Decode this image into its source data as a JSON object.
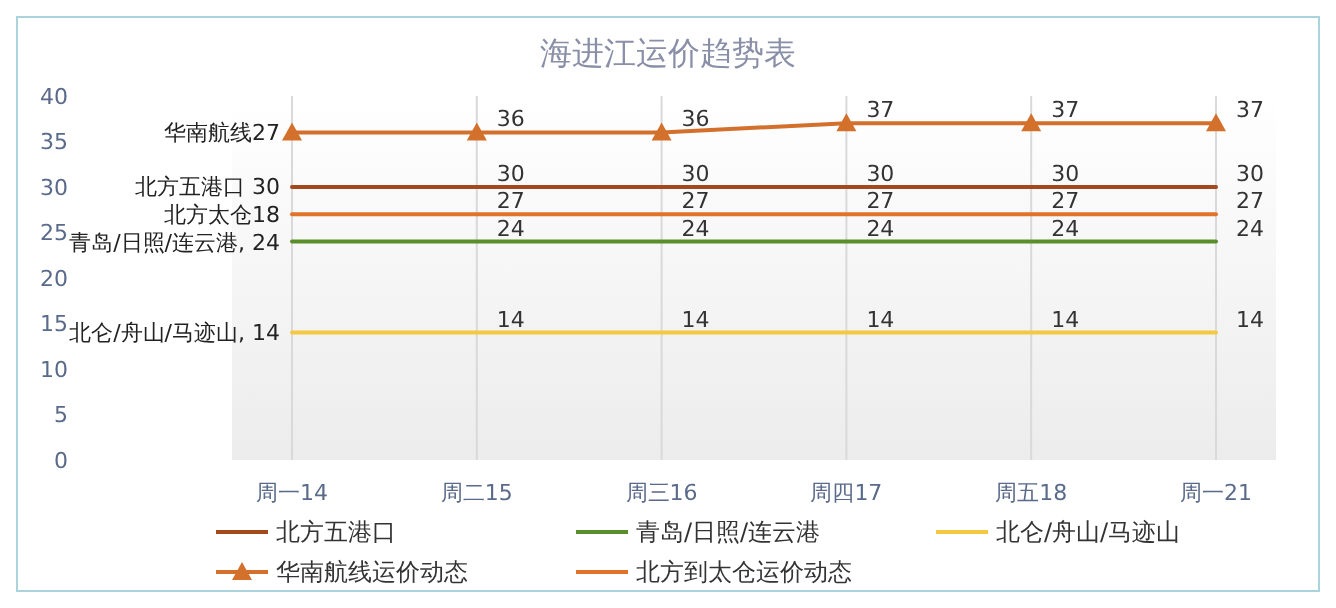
{
  "chart_data": {
    "type": "line",
    "title": "海进江运价趋势表",
    "categories": [
      "周一14",
      "周二15",
      "周三16",
      "周四17",
      "周五18",
      "周一21"
    ],
    "ylim": [
      0,
      40
    ],
    "yticks": [
      0,
      5,
      10,
      15,
      20,
      25,
      30,
      35,
      40
    ],
    "grid": "x",
    "legend": "bottom",
    "line_style": "solid",
    "series": [
      {
        "name": "北方五港口",
        "color": "#a24a1c",
        "marker": "none",
        "values": [
          30,
          30,
          30,
          30,
          30,
          30
        ],
        "value_labels": [
          null,
          "30",
          "30",
          "30",
          "30",
          "30"
        ]
      },
      {
        "name": "青岛/日照/连云港",
        "color": "#5a8e2a",
        "marker": "none",
        "values": [
          24,
          24,
          24,
          24,
          24,
          24
        ],
        "value_labels": [
          null,
          "24",
          "24",
          "24",
          "24",
          "24"
        ]
      },
      {
        "name": "北仑/舟山/马迹山",
        "color": "#f5c842",
        "marker": "none",
        "values": [
          14,
          14,
          14,
          14,
          14,
          14
        ],
        "value_labels": [
          null,
          "14",
          "14",
          "14",
          "14",
          "14"
        ]
      },
      {
        "name": "华南航线运价动态",
        "color": "#d2702c",
        "marker": "triangle",
        "values": [
          36,
          36,
          36,
          37,
          37,
          37
        ],
        "value_labels": [
          null,
          "36",
          "36",
          "37",
          "37",
          "37"
        ]
      },
      {
        "name": "北方到太仓运价动态",
        "color": "#e0722a",
        "marker": "none",
        "values": [
          27,
          27,
          27,
          27,
          27,
          27
        ],
        "value_labels": [
          null,
          "27",
          "27",
          "27",
          "27",
          "27"
        ]
      }
    ],
    "annotations": [
      "华南航线27",
      "北方五港口 30",
      "北方太仓18",
      "青岛/日照/连云港, 24",
      "北仑/舟山/马迹山, 14"
    ]
  }
}
